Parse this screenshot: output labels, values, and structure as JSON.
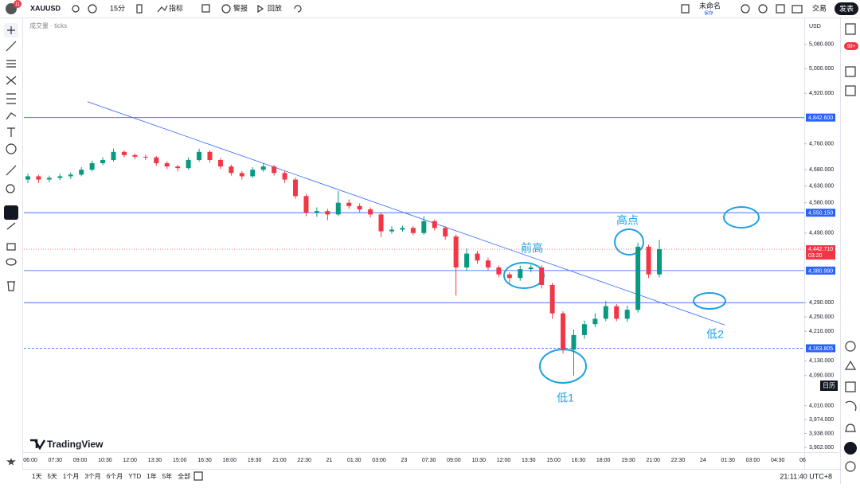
{
  "toolbar": {
    "symbol": "XAUUSD",
    "badge": "11",
    "interval": "15分",
    "indicators": "指标",
    "alerts": "警报",
    "replay": "回放",
    "layout_name": "未命名",
    "saved": "保存",
    "trade": "交易",
    "publish": "发表"
  },
  "legend": "成交量 · ticks",
  "logo": "TradingView",
  "ranges": [
    "1天",
    "5天",
    "1个月",
    "3个月",
    "6个月",
    "YTD",
    "1年",
    "5年",
    "全部"
  ],
  "clock": "21:11:40 UTC+8",
  "sidebar": {
    "notif": "99+",
    "calendar": "日历"
  },
  "chart_data": {
    "type": "candlestick",
    "currency": "USD",
    "log": true,
    "ylim": [
      3890,
      5165
    ],
    "yticks": [
      {
        "value": 5080,
        "label": "5,080.000"
      },
      {
        "value": 5000,
        "label": "5,000.000"
      },
      {
        "value": 4920,
        "label": "4,920.000"
      },
      {
        "value": 4760,
        "label": "4,760.000"
      },
      {
        "value": 4680,
        "label": "4,680.000"
      },
      {
        "value": 4630,
        "label": "4,630.000"
      },
      {
        "value": 4580,
        "label": "4,580.000"
      },
      {
        "value": 4490,
        "label": "4,490.000"
      },
      {
        "value": 4290,
        "label": "4,290.000"
      },
      {
        "value": 4250,
        "label": "4,250.000"
      },
      {
        "value": 4210,
        "label": "4,210.000"
      },
      {
        "value": 4130,
        "label": "4,130.000"
      },
      {
        "value": 4090,
        "label": "4,090.000"
      },
      {
        "value": 4010,
        "label": "4,010.000"
      },
      {
        "value": 3974,
        "label": "3,974.000"
      },
      {
        "value": 3938,
        "label": "3,938.000"
      },
      {
        "value": 3902,
        "label": "3,902.000"
      }
    ],
    "x": [
      "06:00",
      "07:30",
      "09:00",
      "10:30",
      "12:00",
      "13:30",
      "15:00",
      "16:30",
      "18:00",
      "19:30",
      "21:00",
      "22:30",
      "21",
      "01:30",
      "03:00",
      "23",
      "07:30",
      "09:00",
      "10:30",
      "12:00",
      "13:30",
      "15:00",
      "16:30",
      "18:00",
      "19:30",
      "21:00",
      "22:30",
      "24",
      "01:30",
      "03:00",
      "04:30",
      "06"
    ],
    "up_color": "#089981",
    "down_color": "#f23645",
    "candles": [
      [
        4650,
        4668,
        4640,
        4660
      ],
      [
        4660,
        4665,
        4640,
        4650
      ],
      [
        4650,
        4662,
        4642,
        4655
      ],
      [
        4655,
        4668,
        4648,
        4660
      ],
      [
        4660,
        4672,
        4652,
        4665
      ],
      [
        4665,
        4688,
        4660,
        4680
      ],
      [
        4680,
        4708,
        4675,
        4700
      ],
      [
        4700,
        4718,
        4694,
        4710
      ],
      [
        4710,
        4745,
        4705,
        4735
      ],
      [
        4735,
        4740,
        4718,
        4725
      ],
      [
        4725,
        4730,
        4712,
        4720
      ],
      [
        4720,
        4726,
        4710,
        4718
      ],
      [
        4718,
        4722,
        4692,
        4700
      ],
      [
        4700,
        4706,
        4682,
        4690
      ],
      [
        4690,
        4695,
        4675,
        4685
      ],
      [
        4685,
        4718,
        4680,
        4710
      ],
      [
        4710,
        4745,
        4705,
        4735
      ],
      [
        4735,
        4740,
        4702,
        4710
      ],
      [
        4710,
        4716,
        4682,
        4690
      ],
      [
        4690,
        4696,
        4662,
        4670
      ],
      [
        4670,
        4676,
        4650,
        4660
      ],
      [
        4660,
        4688,
        4655,
        4680
      ],
      [
        4680,
        4700,
        4674,
        4690
      ],
      [
        4690,
        4695,
        4662,
        4670
      ],
      [
        4670,
        4676,
        4640,
        4650
      ],
      [
        4650,
        4656,
        4592,
        4600
      ],
      [
        4600,
        4606,
        4540,
        4550
      ],
      [
        4550,
        4566,
        4538,
        4555
      ],
      [
        4555,
        4562,
        4528,
        4545
      ],
      [
        4545,
        4615,
        4540,
        4580
      ],
      [
        4580,
        4590,
        4562,
        4570
      ],
      [
        4570,
        4578,
        4552,
        4560
      ],
      [
        4560,
        4566,
        4536,
        4545
      ],
      [
        4545,
        4550,
        4478,
        4495
      ],
      [
        4495,
        4510,
        4488,
        4500
      ],
      [
        4500,
        4512,
        4494,
        4505
      ],
      [
        4505,
        4510,
        4484,
        4490
      ],
      [
        4490,
        4540,
        4485,
        4525
      ],
      [
        4525,
        4530,
        4498,
        4505
      ],
      [
        4505,
        4510,
        4470,
        4480
      ],
      [
        4480,
        4486,
        4310,
        4390
      ],
      [
        4390,
        4445,
        4380,
        4430
      ],
      [
        4430,
        4438,
        4400,
        4410
      ],
      [
        4410,
        4418,
        4382,
        4390
      ],
      [
        4390,
        4396,
        4362,
        4370
      ],
      [
        4370,
        4376,
        4345,
        4360
      ],
      [
        4360,
        4395,
        4352,
        4385
      ],
      [
        4385,
        4398,
        4376,
        4390
      ],
      [
        4390,
        4396,
        4330,
        4340
      ],
      [
        4340,
        4346,
        4245,
        4260
      ],
      [
        4260,
        4266,
        4150,
        4160
      ],
      [
        4160,
        4215,
        4090,
        4200
      ],
      [
        4200,
        4240,
        4190,
        4230
      ],
      [
        4230,
        4260,
        4222,
        4245
      ],
      [
        4245,
        4295,
        4238,
        4280
      ],
      [
        4280,
        4286,
        4238,
        4245
      ],
      [
        4245,
        4282,
        4236,
        4270
      ],
      [
        4270,
        4462,
        4262,
        4450
      ],
      [
        4450,
        4456,
        4360,
        4370
      ],
      [
        4370,
        4470,
        4362,
        4443
      ]
    ],
    "levels": [
      {
        "value": 4842.6,
        "label": "4,842.600"
      },
      {
        "value": 4550.15,
        "label": "4,550.150"
      },
      {
        "value": 4380.99,
        "label": "4,380.990"
      },
      {
        "value": 4163.805,
        "label": "4,163.805"
      }
    ],
    "extra_levels": [
      4290
    ],
    "last_price": {
      "value": 4442.71,
      "label": "4,442.710"
    },
    "countdown": "03:20",
    "trendline": [
      4893,
      4228
    ],
    "annotations": [
      "前高",
      "高点",
      "低2",
      "低1"
    ]
  }
}
